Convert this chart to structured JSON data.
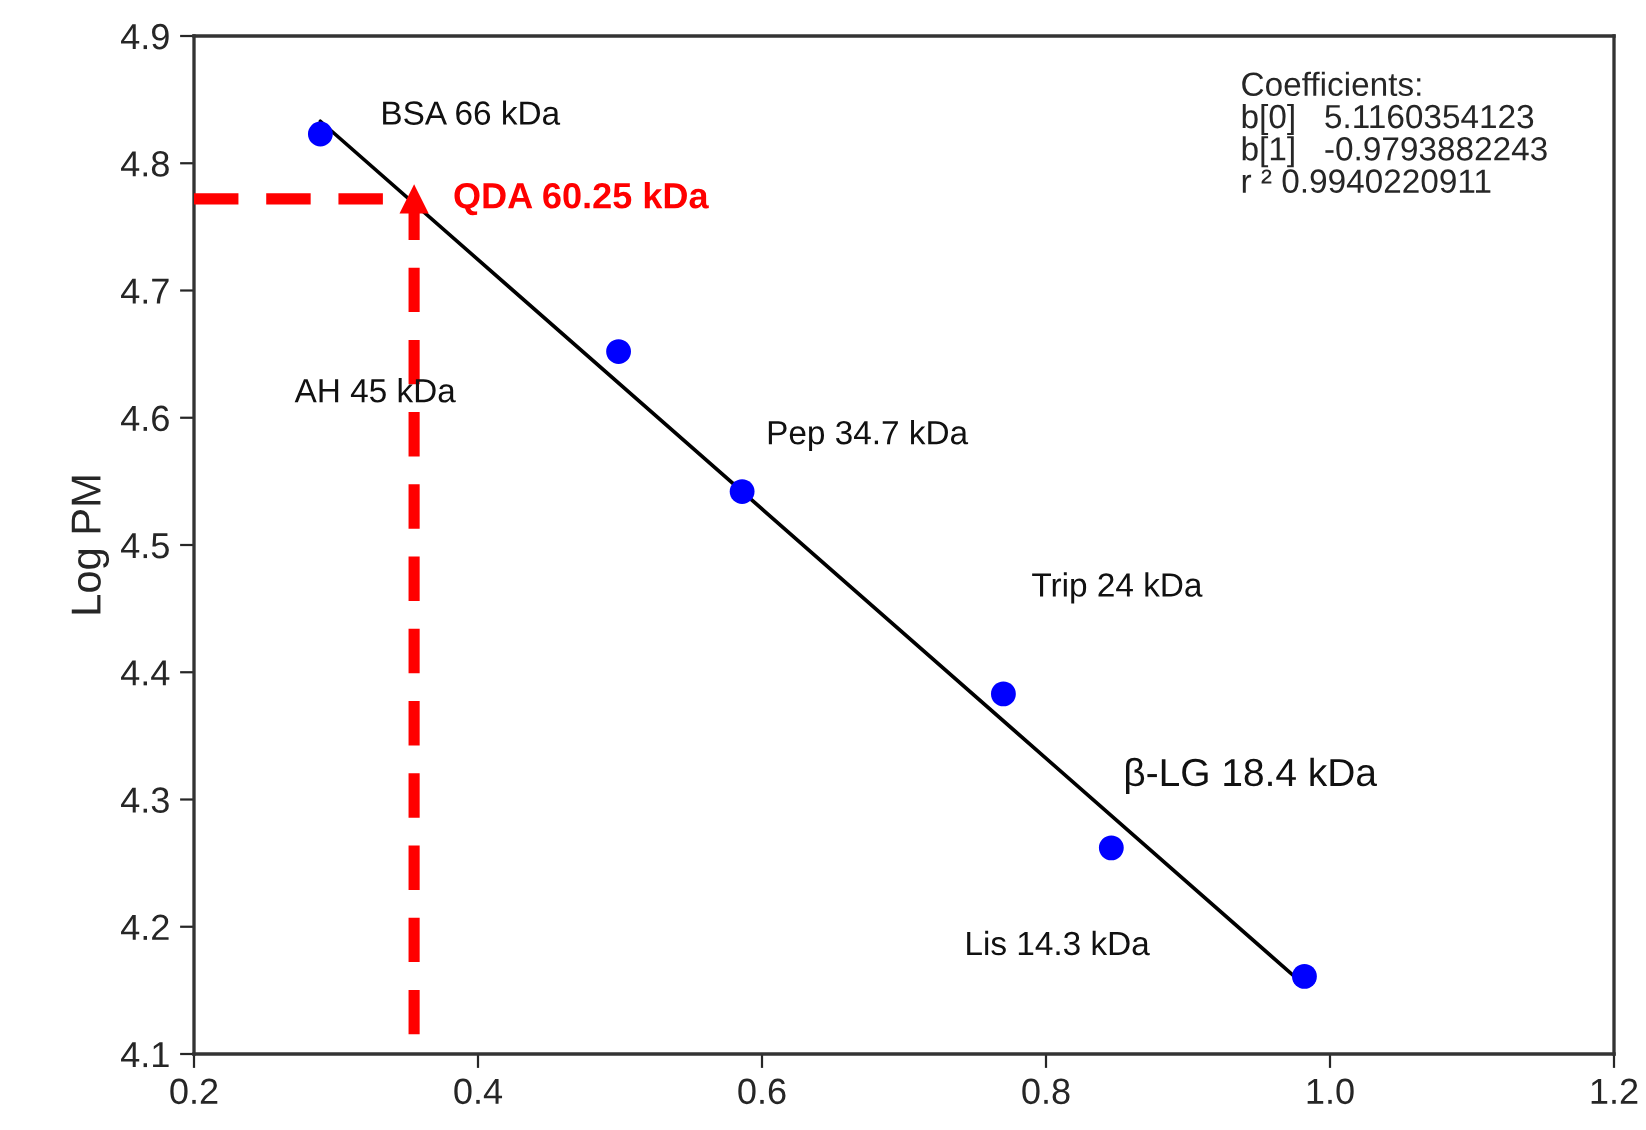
{
  "chart_data": {
    "type": "scatter",
    "ylabel": "Log PM",
    "xlim": [
      0.2,
      1.2
    ],
    "xticks": [
      0.2,
      0.4,
      0.6,
      0.8,
      {
        "value": 1.0,
        "label": "1.0"
      },
      1.2
    ],
    "ylim": [
      4.1,
      4.9
    ],
    "yticks": [
      4.1,
      4.2,
      4.3,
      4.4,
      4.5,
      4.6,
      4.7,
      4.8,
      4.9
    ],
    "grid": false,
    "legend": false,
    "series": [
      {
        "color": "#0000ff",
        "marker": "circle",
        "x": [
          0.289,
          0.499,
          0.586,
          0.77,
          0.846,
          0.982
        ],
        "values": [
          4.823,
          4.652,
          4.542,
          4.383,
          4.262,
          4.161
        ]
      },
      {
        "type": "line",
        "color": "#000000",
        "marker": "none",
        "line_style": "solid",
        "x": [
          0.289,
          0.98
        ],
        "values": [
          4.833,
          4.156
        ]
      },
      {
        "type": "line",
        "color": "#ff0000",
        "marker": "none",
        "line_style": "dashed",
        "x": [
          0.2,
          0.355,
          0.355
        ],
        "values": [
          4.772,
          4.772,
          4.1
        ]
      },
      {
        "type": "scatter",
        "name": "QDA 60.25 kDa",
        "color": "#ff0000",
        "marker": "triangle",
        "x": [
          0.355
        ],
        "values": [
          4.772
        ]
      }
    ],
    "annotations": [
      "BSA 66 kDa",
      "AH 45 kDa",
      "Pep 34.7 kDa",
      "Trip 24 kDa",
      "β-LG 18.4 kDa",
      "Lis 14.3 kDa",
      "Coefficients:\nb[0]   5.1160354123\nb[1]   -0.9793882243\nr ² 0.9940220911"
    ]
  }
}
